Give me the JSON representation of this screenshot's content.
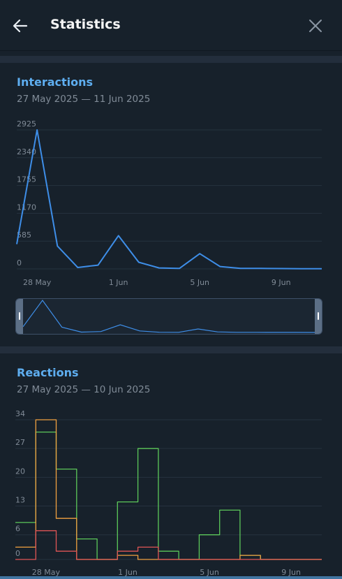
{
  "header": {
    "title": "Statistics",
    "back_icon": "arrow-left-icon",
    "close_icon": "close-icon"
  },
  "colors": {
    "background": "#17212b",
    "accent": "#5eaef0",
    "line": "#3e8ee8",
    "green": "#5cc85a",
    "orange": "#f0a040",
    "red": "#e05555"
  },
  "interactions": {
    "title": "Interactions",
    "range": "27 May 2025 — 11 Jun 2025"
  },
  "reactions": {
    "title": "Reactions",
    "range": "27 May 2025 — 10 Jun 2025"
  },
  "chart_data": [
    {
      "type": "line",
      "title": "Interactions",
      "x": [
        "27 May",
        "28 May",
        "29 May",
        "30 May",
        "31 May",
        "1 Jun",
        "2 Jun",
        "3 Jun",
        "4 Jun",
        "5 Jun",
        "6 Jun",
        "7 Jun",
        "8 Jun",
        "9 Jun",
        "10 Jun",
        "11 Jun"
      ],
      "series": [
        {
          "values": [
            520,
            2925,
            480,
            30,
            80,
            700,
            140,
            20,
            10,
            320,
            50,
            10,
            10,
            8,
            5,
            3
          ]
        }
      ],
      "yticks": [
        "0",
        "585",
        "1170",
        "1755",
        "2340",
        "2925"
      ],
      "ylim": [
        0,
        2925
      ],
      "xticks": [
        "28 May",
        "1 Jun",
        "5 Jun",
        "9 Jun"
      ],
      "grid": true
    },
    {
      "type": "line",
      "title": "Reactions",
      "x": [
        "27 May",
        "28 May",
        "29 May",
        "30 May",
        "31 May",
        "1 Jun",
        "2 Jun",
        "3 Jun",
        "4 Jun",
        "5 Jun",
        "6 Jun",
        "7 Jun",
        "8 Jun",
        "9 Jun",
        "10 Jun"
      ],
      "series": [
        {
          "color": "#5cc85a",
          "values": [
            9,
            31,
            22,
            5,
            0,
            14,
            27,
            2,
            0,
            6,
            12,
            1,
            0,
            0,
            0
          ]
        },
        {
          "color": "#f0a040",
          "values": [
            3,
            34,
            10,
            0,
            0,
            1,
            0,
            0,
            0,
            0,
            0,
            1,
            0,
            0,
            0
          ]
        },
        {
          "color": "#e05555",
          "values": [
            0,
            7,
            2,
            0,
            0,
            2,
            3,
            0,
            0,
            0,
            0,
            0,
            0,
            0,
            0
          ]
        }
      ],
      "yticks": [
        "0",
        "6",
        "13",
        "20",
        "27",
        "34"
      ],
      "ylim": [
        0,
        34
      ],
      "xticks": [
        "28 May",
        "1 Jun",
        "5 Jun",
        "9 Jun"
      ],
      "grid": true,
      "step": true
    }
  ]
}
